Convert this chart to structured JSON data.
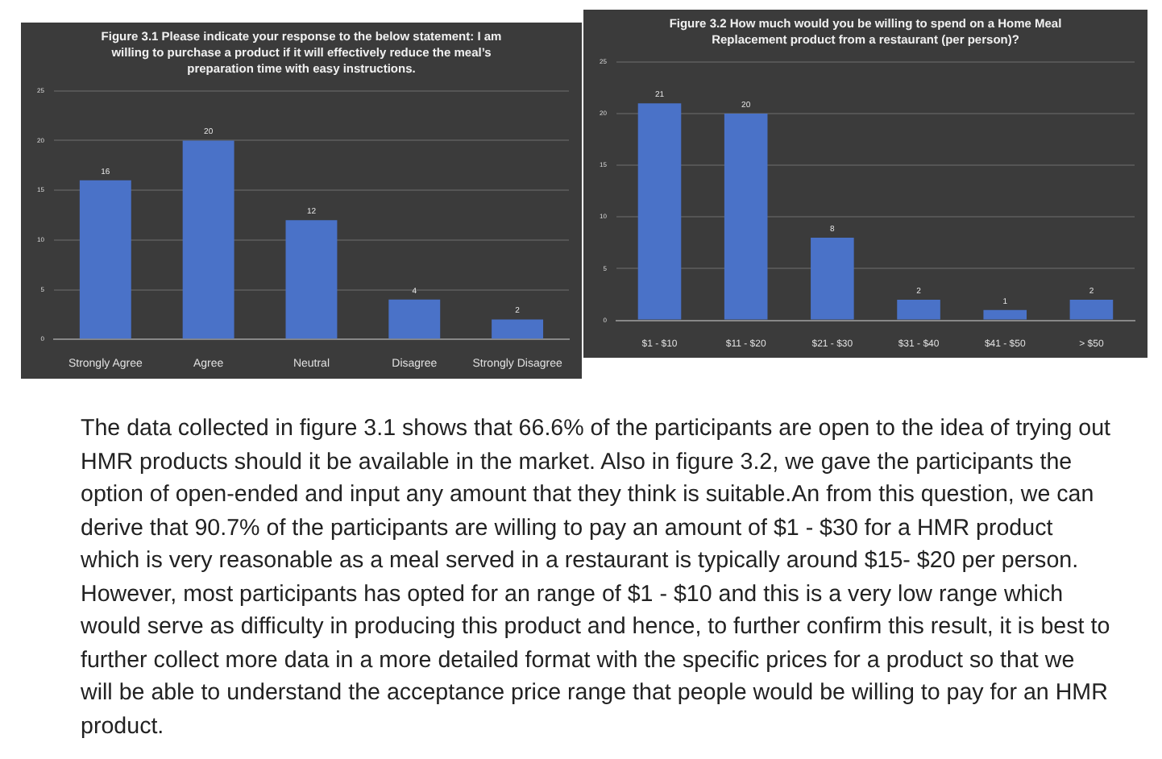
{
  "chart_data": [
    {
      "type": "bar",
      "title": "Figure 3.1 Please indicate your response to the below statement: I am willing to purchase a product if it will effectively reduce the meal’s preparation time with easy instructions.",
      "categories": [
        "Strongly Agree",
        "Agree",
        "Neutral",
        "Disagree",
        "Strongly Disagree"
      ],
      "values": [
        16,
        20,
        12,
        4,
        2
      ],
      "color": "#4a72c8",
      "ylim": [
        0,
        25
      ],
      "yticks": [
        0,
        5,
        10,
        15,
        20,
        25
      ],
      "grid": "y",
      "data_labels": true
    },
    {
      "type": "bar",
      "title": "Figure 3.2 How much would you be willing to spend on a Home Meal Replacement product from a restaurant (per person)?",
      "categories": [
        "$1 - $10",
        "$11 - $20",
        "$21 - $30",
        "$31 - $40",
        "$41 - $50",
        "> $50"
      ],
      "values": [
        21,
        20,
        8,
        2,
        1,
        2
      ],
      "color": "#4a72c8",
      "ylim": [
        0,
        25
      ],
      "yticks": [
        0,
        5,
        10,
        15,
        20,
        25
      ],
      "grid": "y",
      "data_labels": true
    },
    {
      "type": "other",
      "annotations": [
        "The data collected in figure 3.1 shows that 66.6% of the participants are open to the idea of trying out HMR products should it be available in the market. Also in figure 3.2, we gave the participants the option of open-ended and input any  amount that they think is suitable.An from this question, we can derive that 90.7% of the participants are willing to pay an amount of $1 - $30 for a HMR product which is very reasonable as a meal served in a restaurant is typically around $15- $20 per person. However, most participants has opted for an range of $1 - $10 and this is a very low range which would serve as difficulty in producing this product and hence, to further confirm this result, it is best to further collect more data in a more detailed format with the specific prices for a product so that we will be able to understand the acceptance price range that people would be willing to pay for an HMR product."
      ]
    }
  ]
}
